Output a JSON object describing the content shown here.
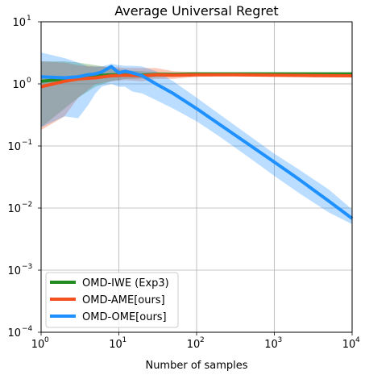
{
  "chart_data": {
    "type": "line",
    "title": "Average Universal Regret",
    "xlabel": "Number of samples",
    "ylabel": "",
    "x_scale": "log",
    "y_scale": "log",
    "xlim": [
      1,
      10000
    ],
    "ylim": [
      0.0001,
      10
    ],
    "x_ticks": [
      {
        "value": 1,
        "base": "10",
        "exp": "0"
      },
      {
        "value": 10,
        "base": "10",
        "exp": "1"
      },
      {
        "value": 100,
        "base": "10",
        "exp": "2"
      },
      {
        "value": 1000,
        "base": "10",
        "exp": "3"
      },
      {
        "value": 10000,
        "base": "10",
        "exp": "4"
      }
    ],
    "y_ticks": [
      {
        "value": 0.0001,
        "base": "10",
        "exp": "−4"
      },
      {
        "value": 0.001,
        "base": "10",
        "exp": "−3"
      },
      {
        "value": 0.01,
        "base": "10",
        "exp": "−2"
      },
      {
        "value": 0.1,
        "base": "10",
        "exp": "−1"
      },
      {
        "value": 1,
        "base": "10",
        "exp": "0"
      },
      {
        "value": 10,
        "base": "10",
        "exp": "1"
      }
    ],
    "grid": true,
    "legend_position": "lower-left",
    "series": [
      {
        "name": "OMD-IWE (Exp3)",
        "color": "#228b22",
        "x": [
          1,
          2,
          3,
          5,
          8,
          12,
          20,
          30,
          50,
          100,
          300,
          1000,
          3000,
          10000
        ],
        "y": [
          1.1,
          1.2,
          1.3,
          1.35,
          1.4,
          1.4,
          1.38,
          1.42,
          1.42,
          1.45,
          1.45,
          1.45,
          1.45,
          1.45
        ],
        "lower": [
          0.2,
          0.4,
          0.6,
          0.9,
          1.1,
          1.2,
          1.22,
          1.28,
          1.3,
          1.35,
          1.38,
          1.4,
          1.41,
          1.42
        ],
        "upper": [
          2.3,
          2.3,
          2.2,
          2.0,
          1.8,
          1.65,
          1.6,
          1.55,
          1.52,
          1.52,
          1.5,
          1.49,
          1.48,
          1.48
        ]
      },
      {
        "name": "OMD-AME[ours]",
        "color": "#f4511e",
        "x": [
          1,
          2,
          3,
          5,
          8,
          12,
          20,
          30,
          50,
          100,
          300,
          1000,
          3000,
          10000
        ],
        "y": [
          0.9,
          1.1,
          1.2,
          1.25,
          1.35,
          1.38,
          1.35,
          1.4,
          1.38,
          1.4,
          1.4,
          1.38,
          1.36,
          1.35
        ],
        "lower": [
          0.18,
          0.3,
          0.6,
          1.0,
          1.1,
          1.15,
          1.1,
          1.2,
          1.2,
          1.3,
          1.35,
          1.33,
          1.32,
          1.31
        ],
        "upper": [
          2.3,
          2.2,
          2.0,
          1.9,
          1.9,
          1.8,
          1.8,
          1.8,
          1.6,
          1.55,
          1.5,
          1.45,
          1.42,
          1.4
        ]
      },
      {
        "name": "OMD-OME[ours]",
        "color": "#1e90ff",
        "x": [
          1,
          2,
          3,
          4,
          5,
          6,
          8,
          10,
          12,
          15,
          20,
          30,
          50,
          100,
          200,
          500,
          1000,
          2000,
          5000,
          10000
        ],
        "y": [
          1.3,
          1.25,
          1.3,
          1.4,
          1.45,
          1.55,
          1.9,
          1.5,
          1.6,
          1.5,
          1.35,
          1.0,
          0.7,
          0.4,
          0.22,
          0.1,
          0.055,
          0.03,
          0.013,
          0.0068
        ],
        "lower": [
          0.2,
          0.3,
          0.28,
          0.45,
          0.7,
          0.9,
          1.0,
          0.9,
          0.9,
          0.75,
          0.7,
          0.55,
          0.4,
          0.25,
          0.14,
          0.062,
          0.033,
          0.018,
          0.0085,
          0.0055
        ],
        "upper": [
          3.2,
          2.6,
          2.2,
          1.9,
          1.9,
          1.9,
          2.1,
          2.0,
          1.95,
          1.95,
          1.9,
          1.6,
          1.1,
          0.6,
          0.32,
          0.14,
          0.075,
          0.043,
          0.02,
          0.0095
        ]
      }
    ]
  }
}
